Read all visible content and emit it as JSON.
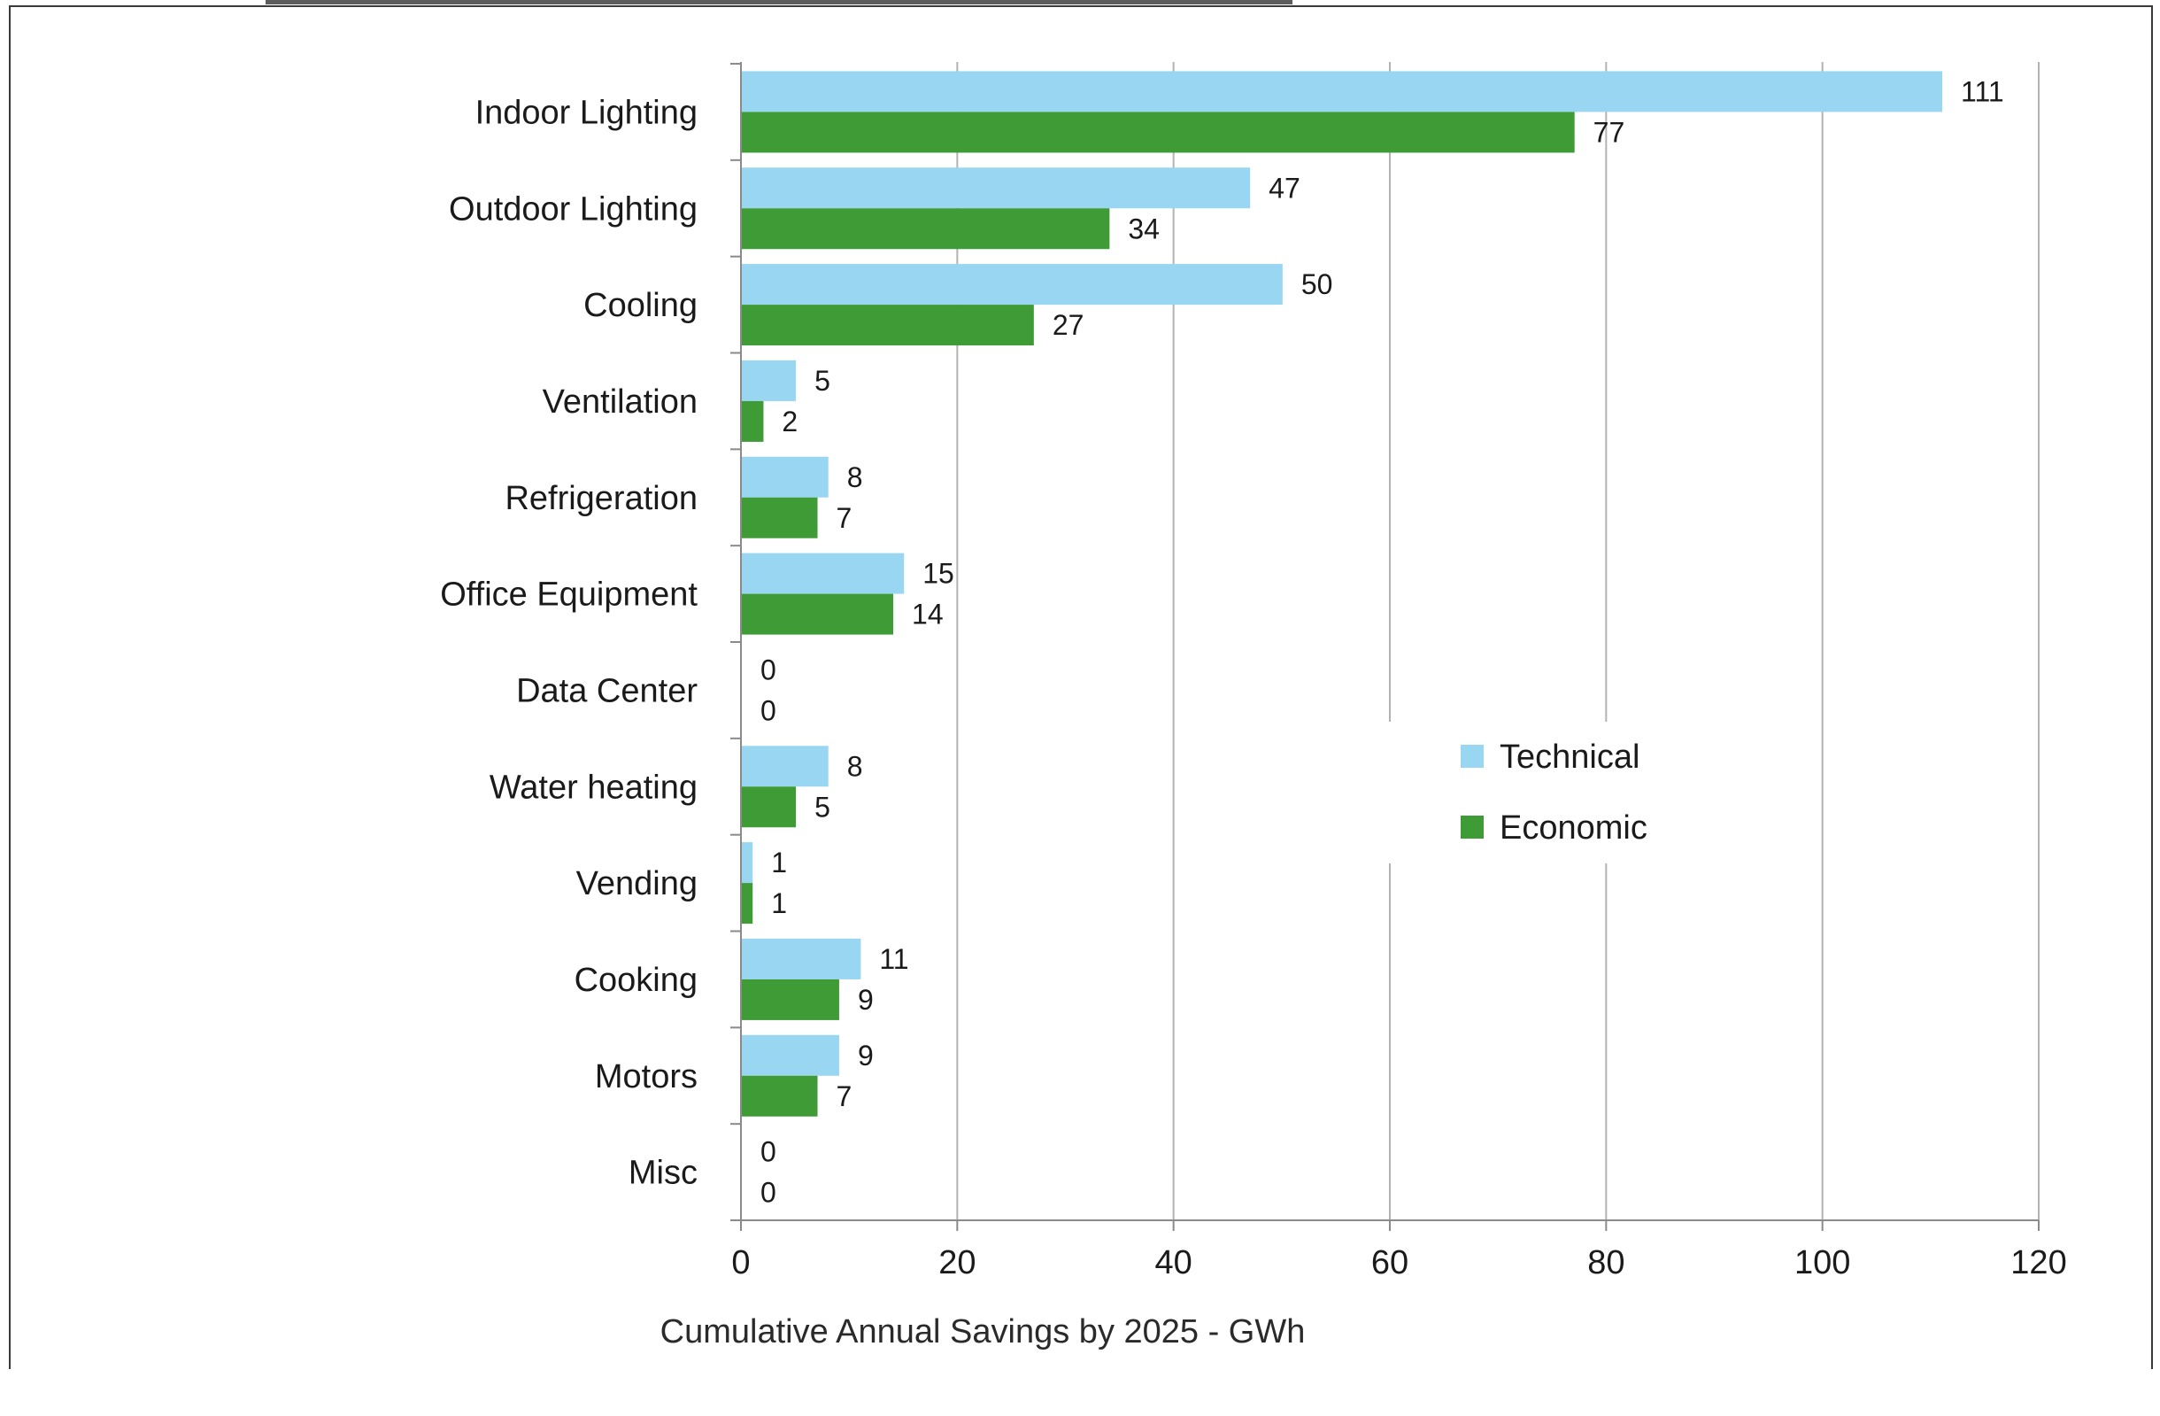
{
  "chart_data": {
    "type": "bar",
    "orientation": "horizontal",
    "categories": [
      "Indoor Lighting",
      "Outdoor Lighting",
      "Cooling",
      "Ventilation",
      "Refrigeration",
      "Office Equipment",
      "Data Center",
      "Water heating",
      "Vending",
      "Cooking",
      "Motors",
      "Misc"
    ],
    "series": [
      {
        "name": "Technical",
        "color": "#99d6f2",
        "values": [
          111,
          47,
          50,
          5,
          8,
          15,
          0,
          8,
          1,
          11,
          9,
          0
        ]
      },
      {
        "name": "Economic",
        "color": "#3f9b35",
        "values": [
          77,
          34,
          27,
          2,
          7,
          14,
          0,
          5,
          1,
          9,
          7,
          0
        ]
      }
    ],
    "xlabel": "Cumulative Annual  Savings by 2025 - GWh",
    "xlim": [
      0,
      120
    ],
    "xticks": [
      0,
      20,
      40,
      60,
      80,
      100,
      120
    ],
    "grid": "vertical",
    "legend_position": "right-center",
    "gridline_color": "#b3b3b3"
  }
}
